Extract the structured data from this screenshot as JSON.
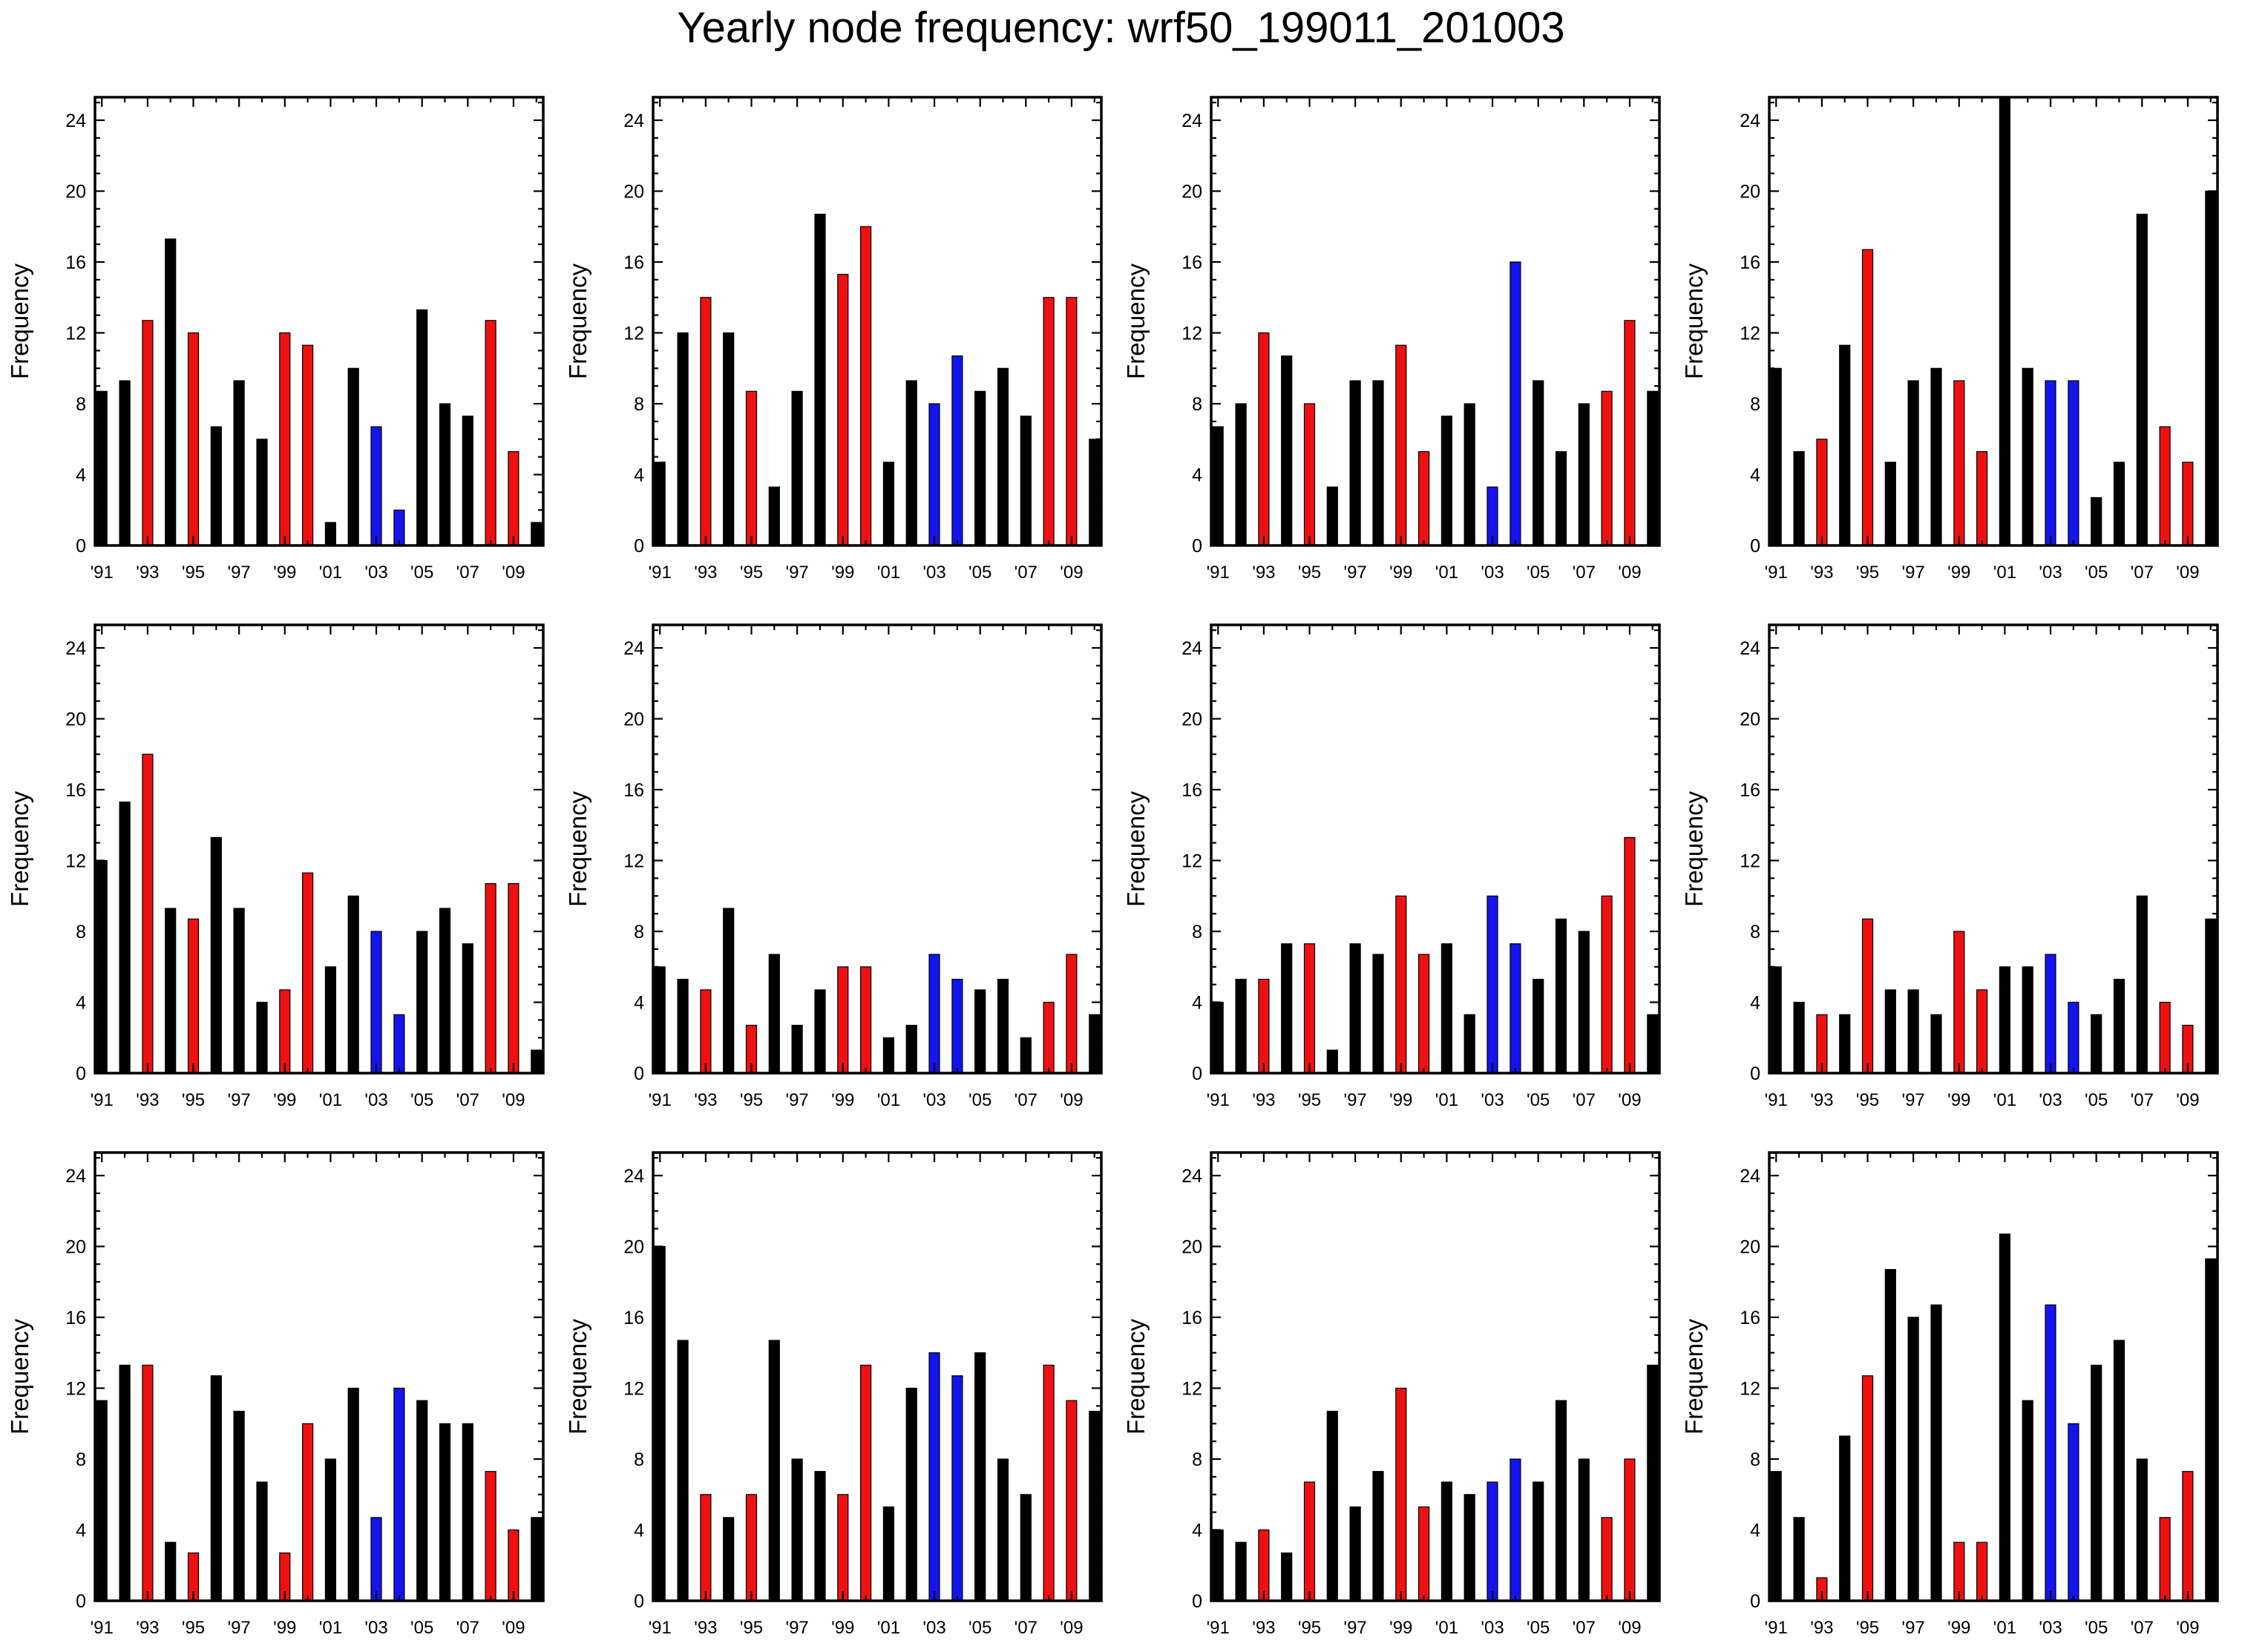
{
  "title": "Yearly node frequency: wrf50_199011_201003",
  "colors": {
    "normal": "#000000",
    "red": "#ee1111",
    "blue": "#1414ee"
  },
  "chart_data": {
    "type": "bar",
    "layout_grid": "3 rows x 4 columns",
    "ylabel": "Frequency",
    "ylim": [
      0,
      25.3
    ],
    "yticks": [
      0,
      4,
      8,
      12,
      16,
      20,
      24
    ],
    "ytick_labels": [
      "0",
      "4",
      "8",
      "12",
      "16",
      "20",
      "24"
    ],
    "x": [
      1991,
      1992,
      1993,
      1994,
      1995,
      1996,
      1997,
      1998,
      1999,
      2000,
      2001,
      2002,
      2003,
      2004,
      2005,
      2006,
      2007,
      2008,
      2009,
      2010
    ],
    "xtick_labels": [
      "'91",
      "'93",
      "'95",
      "'97",
      "'99",
      "'01",
      "'03",
      "'05",
      "'07",
      "'09"
    ],
    "bar_color_by_year": [
      "black",
      "black",
      "red",
      "black",
      "red",
      "black",
      "black",
      "black",
      "red",
      "red",
      "black",
      "black",
      "blue",
      "blue",
      "black",
      "black",
      "black",
      "red",
      "red",
      "black"
    ],
    "panels": [
      {
        "values": [
          8.7,
          9.3,
          12.7,
          17.3,
          12.0,
          6.7,
          9.3,
          6.0,
          12.0,
          11.3,
          1.3,
          10.0,
          6.7,
          2.0,
          13.3,
          8.0,
          7.3,
          12.7,
          5.3,
          1.3
        ]
      },
      {
        "values": [
          4.7,
          12.0,
          14.0,
          12.0,
          8.7,
          3.3,
          8.7,
          18.7,
          15.3,
          18.0,
          4.7,
          9.3,
          8.0,
          10.7,
          8.7,
          10.0,
          7.3,
          14.0,
          14.0,
          6.0
        ]
      },
      {
        "values": [
          6.7,
          8.0,
          12.0,
          10.7,
          8.0,
          3.3,
          9.3,
          9.3,
          11.3,
          5.3,
          7.3,
          8.0,
          3.3,
          16.0,
          9.3,
          5.3,
          8.0,
          8.7,
          12.7,
          8.7
        ]
      },
      {
        "values": [
          10.0,
          5.3,
          6.0,
          11.3,
          16.7,
          4.7,
          9.3,
          10.0,
          9.3,
          5.3,
          25.3,
          10.0,
          9.3,
          9.3,
          2.7,
          4.7,
          18.7,
          6.7,
          4.7,
          20.0
        ]
      },
      {
        "values": [
          12.0,
          15.3,
          18.0,
          9.3,
          8.7,
          13.3,
          9.3,
          4.0,
          4.7,
          11.3,
          6.0,
          10.0,
          8.0,
          3.3,
          8.0,
          9.3,
          7.3,
          10.7,
          10.7,
          1.3
        ]
      },
      {
        "values": [
          6.0,
          5.3,
          4.7,
          9.3,
          2.7,
          6.7,
          2.7,
          4.7,
          6.0,
          6.0,
          2.0,
          2.7,
          6.7,
          5.3,
          4.7,
          5.3,
          2.0,
          4.0,
          6.7,
          3.3
        ]
      },
      {
        "values": [
          4.0,
          5.3,
          5.3,
          7.3,
          7.3,
          1.3,
          7.3,
          6.7,
          10.0,
          6.7,
          7.3,
          3.3,
          10.0,
          7.3,
          5.3,
          8.7,
          8.0,
          10.0,
          13.3,
          3.3
        ]
      },
      {
        "values": [
          6.0,
          4.0,
          3.3,
          3.3,
          8.7,
          4.7,
          4.7,
          3.3,
          8.0,
          4.7,
          6.0,
          6.0,
          6.7,
          4.0,
          3.3,
          5.3,
          10.0,
          4.0,
          2.7,
          8.7
        ]
      },
      {
        "values": [
          11.3,
          13.3,
          13.3,
          3.3,
          2.7,
          12.7,
          10.7,
          6.7,
          2.7,
          10.0,
          8.0,
          12.0,
          4.7,
          12.0,
          11.3,
          10.0,
          10.0,
          7.3,
          4.0,
          4.7
        ]
      },
      {
        "values": [
          20.0,
          14.7,
          6.0,
          4.7,
          6.0,
          14.7,
          8.0,
          7.3,
          6.0,
          13.3,
          5.3,
          12.0,
          14.0,
          12.7,
          14.0,
          8.0,
          6.0,
          13.3,
          11.3,
          10.7
        ]
      },
      {
        "values": [
          4.0,
          3.3,
          4.0,
          2.7,
          6.7,
          10.7,
          5.3,
          7.3,
          12.0,
          5.3,
          6.7,
          6.0,
          6.7,
          8.0,
          6.7,
          11.3,
          8.0,
          4.7,
          8.0,
          13.3
        ]
      },
      {
        "values": [
          7.3,
          4.7,
          1.3,
          9.3,
          12.7,
          18.7,
          16.0,
          16.7,
          3.3,
          3.3,
          20.7,
          11.3,
          16.7,
          10.0,
          13.3,
          14.7,
          8.0,
          4.7,
          7.3,
          19.3
        ]
      }
    ]
  }
}
